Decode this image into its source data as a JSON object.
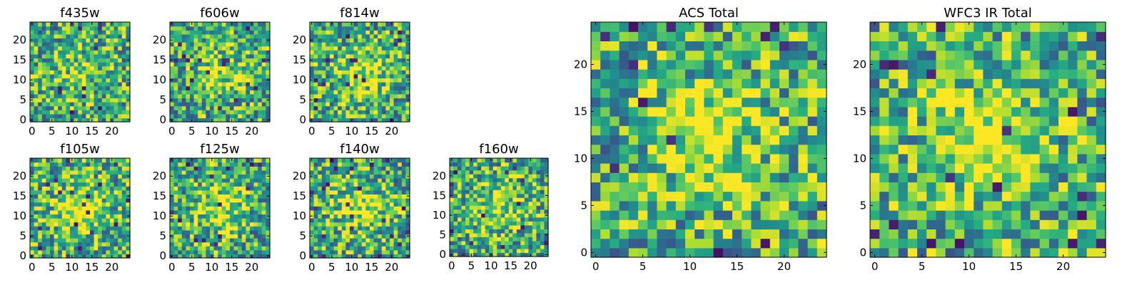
{
  "chart_data": [
    {
      "type": "heatmap",
      "title": "f435w",
      "xlim": [
        0,
        24
      ],
      "ylim": [
        0,
        24
      ],
      "x_ticks": [
        0,
        5,
        10,
        15,
        20
      ],
      "y_ticks": [
        0,
        5,
        10,
        15,
        20
      ],
      "colormap": "viridis",
      "seed": 11,
      "peak": 0.15
    },
    {
      "type": "heatmap",
      "title": "f606w",
      "xlim": [
        0,
        24
      ],
      "ylim": [
        0,
        24
      ],
      "x_ticks": [
        0,
        5,
        10,
        15,
        20
      ],
      "y_ticks": [
        0,
        5,
        10,
        15,
        20
      ],
      "colormap": "viridis",
      "seed": 23,
      "peak": 0.25
    },
    {
      "type": "heatmap",
      "title": "f814w",
      "xlim": [
        0,
        24
      ],
      "ylim": [
        0,
        24
      ],
      "x_ticks": [
        0,
        5,
        10,
        15,
        20
      ],
      "y_ticks": [
        0,
        5,
        10,
        15,
        20
      ],
      "colormap": "viridis",
      "seed": 37,
      "peak": 0.3
    },
    {
      "type": "heatmap",
      "title": "f105w",
      "xlim": [
        0,
        24
      ],
      "ylim": [
        0,
        24
      ],
      "x_ticks": [
        0,
        5,
        10,
        15,
        20
      ],
      "y_ticks": [
        0,
        5,
        10,
        15,
        20
      ],
      "colormap": "viridis",
      "seed": 41,
      "peak": 0.4
    },
    {
      "type": "heatmap",
      "title": "f125w",
      "xlim": [
        0,
        24
      ],
      "ylim": [
        0,
        24
      ],
      "x_ticks": [
        0,
        5,
        10,
        15,
        20
      ],
      "y_ticks": [
        0,
        5,
        10,
        15,
        20
      ],
      "colormap": "viridis",
      "seed": 53,
      "peak": 0.3
    },
    {
      "type": "heatmap",
      "title": "f140w",
      "xlim": [
        0,
        24
      ],
      "ylim": [
        0,
        24
      ],
      "x_ticks": [
        0,
        5,
        10,
        15,
        20
      ],
      "y_ticks": [
        0,
        5,
        10,
        15,
        20
      ],
      "colormap": "viridis",
      "seed": 67,
      "peak": 0.3
    },
    {
      "type": "heatmap",
      "title": "f160w",
      "xlim": [
        0,
        24
      ],
      "ylim": [
        0,
        24
      ],
      "x_ticks": [
        0,
        5,
        10,
        15,
        20
      ],
      "y_ticks": [
        0,
        5,
        10,
        15,
        20
      ],
      "colormap": "viridis",
      "seed": 79,
      "peak": 0.25
    },
    {
      "type": "heatmap",
      "title": "ACS Total",
      "xlim": [
        0,
        24
      ],
      "ylim": [
        0,
        24
      ],
      "x_ticks": [
        0,
        5,
        10,
        15,
        20
      ],
      "y_ticks": [
        0,
        5,
        10,
        15,
        20
      ],
      "colormap": "viridis",
      "seed": 97,
      "peak": 0.35
    },
    {
      "type": "heatmap",
      "title": "WFC3 IR Total",
      "xlim": [
        0,
        24
      ],
      "ylim": [
        0,
        24
      ],
      "x_ticks": [
        0,
        5,
        10,
        15,
        20
      ],
      "y_ticks": [
        0,
        5,
        10,
        15,
        20
      ],
      "colormap": "viridis",
      "seed": 113,
      "peak": 0.45
    }
  ]
}
